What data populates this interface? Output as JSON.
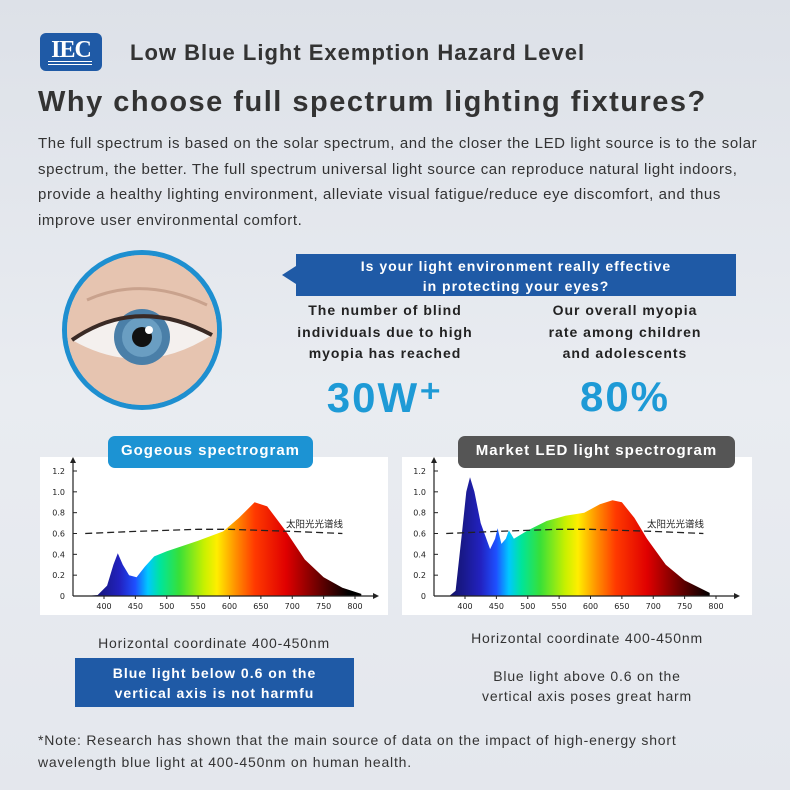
{
  "header": {
    "logo_text": "IEC",
    "title": "Low Blue Light Exemption Hazard Level"
  },
  "heading": "Why choose full spectrum lighting fixtures?",
  "intro": "The full spectrum is based on the solar spectrum, and the closer the LED light source is to the solar spectrum, the better. The full spectrum universal light source can reproduce natural light indoors, provide a healthy lighting environment, alleviate visual fatigue/reduce eye discomfort, and thus improve user environmental comfort.",
  "banner": {
    "line1": "Is your light environment really effective",
    "line2": "in protecting your eyes?"
  },
  "stats": [
    {
      "text": "The number of blind individuals due to high myopia has reached",
      "value": "30W⁺"
    },
    {
      "text": "Our overall myopia rate among children and adolescents",
      "value": "80%"
    }
  ],
  "colors": {
    "brand_blue": "#1f5aa6",
    "accent_blue": "#1e9ad6",
    "pill_dark": "#555555"
  },
  "chart_data": [
    {
      "type": "area",
      "title": "Gogeous spectrogram",
      "xticks": [
        400,
        450,
        500,
        550,
        600,
        650,
        700,
        750,
        800
      ],
      "yticks": [
        "0",
        "0.2",
        "0.4",
        "0.6",
        "0.8",
        "1.0",
        "1.2"
      ],
      "ylim": [
        0,
        1.2
      ],
      "reference_label": "太阳光光谱线",
      "series": [
        [
          370,
          0
        ],
        [
          390,
          0.01
        ],
        [
          405,
          0.1
        ],
        [
          415,
          0.3
        ],
        [
          422,
          0.41
        ],
        [
          430,
          0.3
        ],
        [
          440,
          0.2
        ],
        [
          452,
          0.18
        ],
        [
          465,
          0.28
        ],
        [
          480,
          0.38
        ],
        [
          500,
          0.43
        ],
        [
          550,
          0.53
        ],
        [
          590,
          0.62
        ],
        [
          615,
          0.75
        ],
        [
          640,
          0.9
        ],
        [
          660,
          0.86
        ],
        [
          690,
          0.62
        ],
        [
          720,
          0.35
        ],
        [
          750,
          0.18
        ],
        [
          780,
          0.08
        ],
        [
          810,
          0.02
        ],
        [
          810,
          0
        ]
      ],
      "reference": [
        [
          370,
          0.6
        ],
        [
          450,
          0.62
        ],
        [
          550,
          0.64
        ],
        [
          600,
          0.64
        ],
        [
          700,
          0.62
        ],
        [
          780,
          0.6
        ]
      ]
    },
    {
      "type": "area",
      "title": "Market LED light spectrogram",
      "xticks": [
        400,
        450,
        500,
        550,
        600,
        650,
        700,
        750,
        800
      ],
      "yticks": [
        "0",
        "0.2",
        "0.4",
        "0.6",
        "0.8",
        "1.0",
        "1.2"
      ],
      "ylim": [
        0,
        1.2
      ],
      "reference_label": "太阳光光谱线",
      "series": [
        [
          375,
          0
        ],
        [
          385,
          0.05
        ],
        [
          395,
          0.6
        ],
        [
          402,
          1.0
        ],
        [
          408,
          1.14
        ],
        [
          415,
          1.0
        ],
        [
          425,
          0.7
        ],
        [
          440,
          0.45
        ],
        [
          448,
          0.55
        ],
        [
          452,
          0.65
        ],
        [
          458,
          0.5
        ],
        [
          465,
          0.55
        ],
        [
          470,
          0.63
        ],
        [
          478,
          0.55
        ],
        [
          500,
          0.63
        ],
        [
          530,
          0.72
        ],
        [
          560,
          0.77
        ],
        [
          590,
          0.8
        ],
        [
          615,
          0.88
        ],
        [
          635,
          0.92
        ],
        [
          650,
          0.9
        ],
        [
          670,
          0.75
        ],
        [
          690,
          0.55
        ],
        [
          720,
          0.3
        ],
        [
          750,
          0.15
        ],
        [
          790,
          0.03
        ],
        [
          790,
          0
        ]
      ],
      "reference": [
        [
          370,
          0.6
        ],
        [
          450,
          0.62
        ],
        [
          550,
          0.64
        ],
        [
          600,
          0.64
        ],
        [
          700,
          0.62
        ],
        [
          780,
          0.6
        ]
      ]
    }
  ],
  "captions": [
    {
      "coord": "Horizontal coordinate 400-450nm",
      "line1": "Blue light below 0.6 on the",
      "line2": "vertical axis is not harmfu"
    },
    {
      "coord": "Horizontal coordinate 400-450nm",
      "line1": "Blue light above 0.6 on the",
      "line2": "vertical axis poses great harm"
    }
  ],
  "note": "*Note: Research has shown that the main source of data on the impact of high-energy short wavelength blue light at 400-450nm on human health."
}
